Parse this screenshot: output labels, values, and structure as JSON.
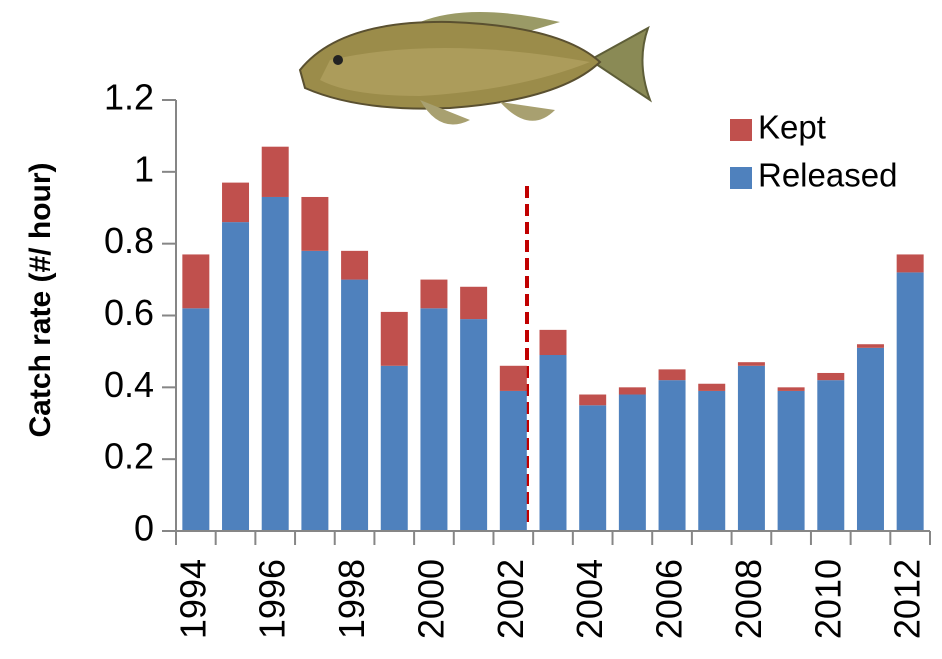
{
  "chart_data": {
    "type": "stacked-bar",
    "y_label": "Catch rate (#/ hour)",
    "categories": [
      "1994",
      null,
      "1996",
      null,
      "1998",
      null,
      "2000",
      null,
      "2002",
      null,
      "2004",
      null,
      "2006",
      null,
      "2008",
      null,
      "2010",
      null,
      "2012"
    ],
    "series": [
      {
        "name": "Released",
        "color": "#4f81bd",
        "values": [
          0.62,
          0.86,
          0.93,
          0.78,
          0.7,
          0.46,
          0.62,
          0.59,
          0.39,
          0.49,
          0.35,
          0.38,
          0.42,
          0.39,
          0.46,
          0.39,
          0.42,
          0.51,
          0.72
        ]
      },
      {
        "name": "Kept",
        "color": "#c0504d",
        "values": [
          0.15,
          0.11,
          0.14,
          0.15,
          0.08,
          0.15,
          0.08,
          0.09,
          0.07,
          0.07,
          0.03,
          0.02,
          0.03,
          0.02,
          0.01,
          0.01,
          0.02,
          0.01,
          0.05
        ]
      }
    ],
    "ylim": [
      0,
      1.2
    ],
    "yticks": [
      0,
      0.2,
      0.4,
      0.6,
      0.8,
      1,
      1.2
    ]
  }
}
